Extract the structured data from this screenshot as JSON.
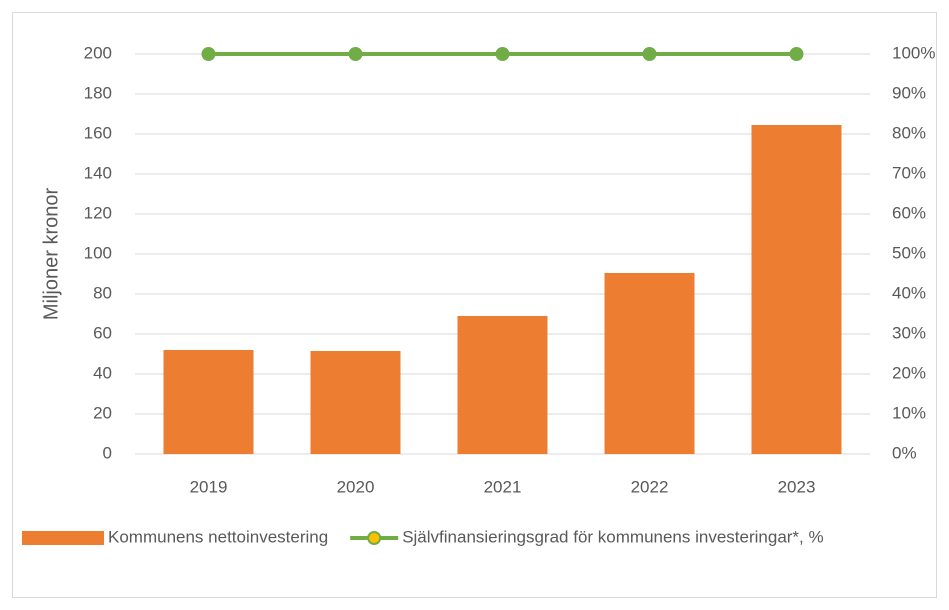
{
  "chart_data": {
    "type": "bar",
    "ylabel": "Miljoner kronor",
    "categories": [
      "2019",
      "2020",
      "2021",
      "2022",
      "2023"
    ],
    "series": [
      {
        "name": "Kommunens nettoinvestering",
        "type": "bar",
        "color": "#ed7d31",
        "values": [
          52,
          51.5,
          69,
          90.5,
          164.5
        ]
      },
      {
        "name": "Självfinansieringsgrad för kommunens investeringar*, %",
        "type": "line",
        "axis": "y2",
        "color": "#70ad47",
        "values": [
          100,
          100,
          100,
          100,
          100
        ]
      }
    ],
    "ylim": [
      0,
      200
    ],
    "yticks": [
      0,
      20,
      40,
      60,
      80,
      100,
      120,
      140,
      160,
      180,
      200
    ],
    "y2lim": [
      0,
      100
    ],
    "y2ticks": [
      {
        "value": 0,
        "label": "0%"
      },
      {
        "value": 10,
        "label": "10%"
      },
      {
        "value": 20,
        "label": "20%"
      },
      {
        "value": 30,
        "label": "30%"
      },
      {
        "value": 40,
        "label": "40%"
      },
      {
        "value": 50,
        "label": "50%"
      },
      {
        "value": 60,
        "label": "60%"
      },
      {
        "value": 70,
        "label": "70%"
      },
      {
        "value": 80,
        "label": "80%"
      },
      {
        "value": 90,
        "label": "90%"
      },
      {
        "value": 100,
        "label": "100%"
      }
    ],
    "grid": true,
    "legend": "bottom"
  }
}
